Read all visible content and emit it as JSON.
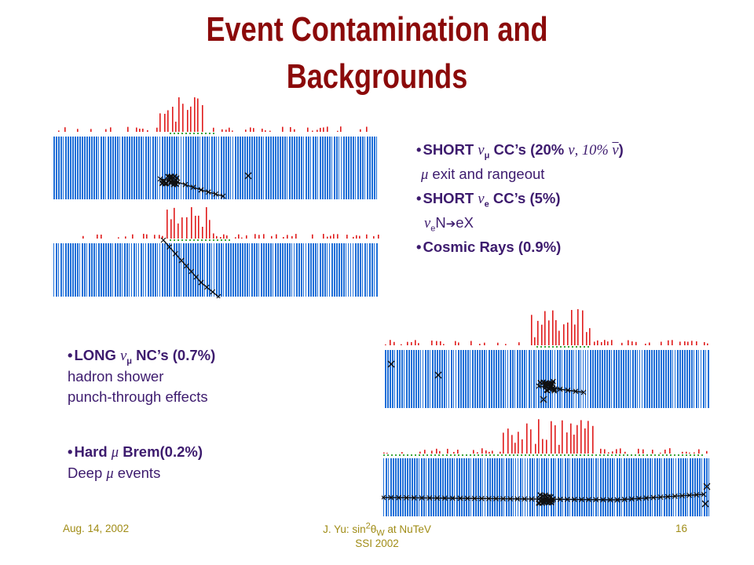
{
  "title": {
    "line1": "Event Contamination and",
    "line2": "Backgrounds"
  },
  "right_list": {
    "item1_prefix": "SHORT ",
    "item1_nu": "ν",
    "item1_sub": "μ",
    "item1_mid": " CC’s (20% ",
    "item1_nu2": "ν",
    "item1_pct": ", 10% ",
    "item1_nubar": "ν",
    "item1_close": ")",
    "item1_detail_mu": "μ",
    "item1_detail": " exit and rangeout",
    "item2_prefix": "SHORT ",
    "item2_nu": "ν",
    "item2_sub": "e",
    "item2_suffix": " CC’s (5%)",
    "item2_detail_nu": "ν",
    "item2_detail_sub": "e",
    "item2_detail_N": "N",
    "item2_detail_arrow": "➔",
    "item2_detail_eX": "eX",
    "item3": "Cosmic Rays (0.9%)"
  },
  "left_list": {
    "item1_prefix": "LONG ",
    "item1_nu": "ν",
    "item1_sub": "μ",
    "item1_suffix": " NC’s (0.7%)",
    "item1_detail1": "hadron shower",
    "item1_detail2": "punch-through effects",
    "item2_prefix": "Hard ",
    "item2_mu": "μ",
    "item2_suffix": " Brem(0.2%)",
    "item2_detail_prefix": "Deep ",
    "item2_detail_mu": "μ",
    "item2_detail_suffix": " events"
  },
  "footer": {
    "date": "Aug. 14, 2002",
    "author_prefix": "J. Yu: sin",
    "author_sup": "2",
    "author_theta": "θ",
    "author_sub": "W",
    "author_suffix": " at NuTeV",
    "venue": "SSI 2002",
    "page": "16"
  },
  "colors": {
    "title": "#8b0a0a",
    "text": "#3d1b6e",
    "footer": "#a08c16",
    "detector_blue": "#1f6fd8",
    "calorimeter_red": "#e01b1b",
    "hit_green": "#3aa53a",
    "track": "#111111"
  }
}
